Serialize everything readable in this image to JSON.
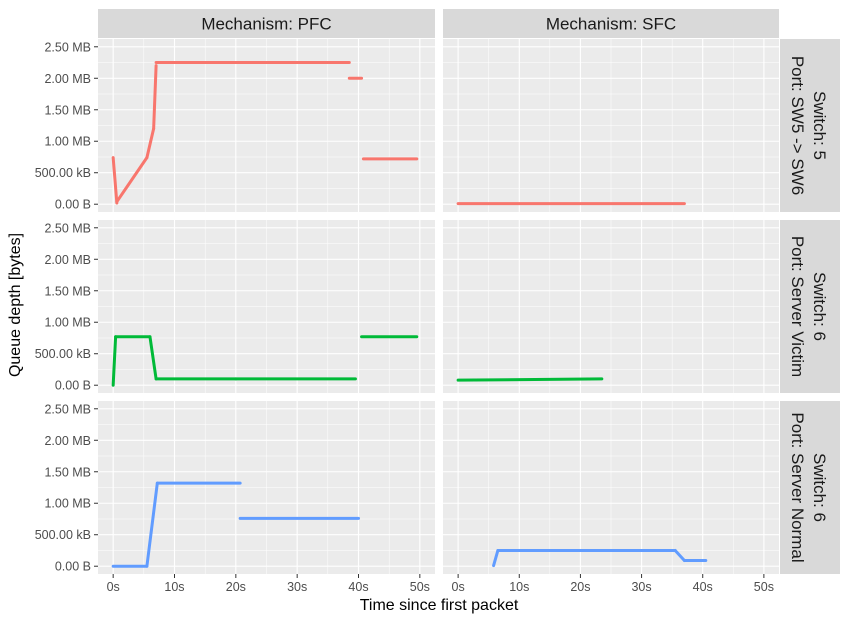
{
  "chart_data": {
    "type": "scatter",
    "title": "",
    "xlabel": "Time since first packet",
    "ylabel": "Queue depth [bytes]",
    "x_unit": "seconds",
    "y_unit": "bytes",
    "xlim": [
      0,
      50
    ],
    "ylim": [
      0,
      2500000
    ],
    "x_ticks": [
      0,
      10,
      20,
      30,
      40,
      50
    ],
    "x_tick_labels": [
      "0s",
      "10s",
      "20s",
      "30s",
      "40s",
      "50s"
    ],
    "y_ticks": [
      0,
      500000,
      1000000,
      1500000,
      2000000,
      2500000
    ],
    "y_tick_labels": [
      "0.00 B",
      "500.00 kB",
      "1.00 MB",
      "1.50 MB",
      "2.00 MB",
      "2.50 MB"
    ],
    "grid": true,
    "legend": "none",
    "columns": [
      "Mechanism: PFC",
      "Mechanism: SFC"
    ],
    "rows": [
      "Switch: 5\nPort: SW5 -> SW6",
      "Switch: 6\nPort: Server Victim",
      "Switch: 6\nPort: Server Normal"
    ],
    "row_colors": [
      "#F8766D",
      "#00BA38",
      "#619CFF"
    ],
    "panels": [
      {
        "row": 0,
        "col": 0,
        "segments": [
          [
            0,
            740000,
            0.6,
            20000
          ],
          [
            0.6,
            40000,
            5.5,
            740000
          ],
          [
            5.5,
            740000,
            6.6,
            1200000
          ],
          [
            6.6,
            1200000,
            7,
            2200000
          ],
          [
            7,
            2250000,
            20,
            2250000
          ],
          [
            20,
            2250000,
            38.5,
            2250000
          ],
          [
            38.5,
            2000000,
            40.5,
            2000000
          ],
          [
            40.8,
            720000,
            49.5,
            720000
          ]
        ]
      },
      {
        "row": 0,
        "col": 1,
        "segments": [
          [
            0,
            10000,
            37,
            10000
          ]
        ]
      },
      {
        "row": 1,
        "col": 0,
        "segments": [
          [
            0,
            0,
            0.4,
            770000
          ],
          [
            0.4,
            770000,
            6,
            770000
          ],
          [
            6,
            770000,
            7,
            100000
          ],
          [
            7,
            100000,
            20,
            100000
          ],
          [
            20,
            100000,
            39.5,
            100000
          ],
          [
            40.5,
            770000,
            49.5,
            770000
          ]
        ]
      },
      {
        "row": 1,
        "col": 1,
        "segments": [
          [
            0,
            80000,
            23.5,
            100000
          ]
        ]
      },
      {
        "row": 2,
        "col": 0,
        "segments": [
          [
            0,
            0,
            5.5,
            0
          ],
          [
            5.5,
            0,
            7.2,
            1320000
          ],
          [
            7.2,
            1320000,
            20.7,
            1320000
          ],
          [
            20.7,
            760000,
            40,
            760000
          ]
        ]
      },
      {
        "row": 2,
        "col": 1,
        "segments": [
          [
            5.8,
            10000,
            6.5,
            250000
          ],
          [
            6.5,
            250000,
            35.5,
            250000
          ],
          [
            35.5,
            250000,
            37,
            90000
          ],
          [
            37,
            90000,
            40.5,
            90000
          ]
        ]
      }
    ]
  }
}
